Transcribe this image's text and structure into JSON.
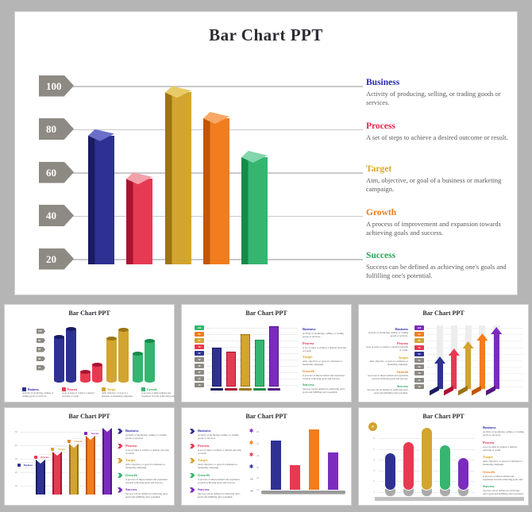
{
  "page": {
    "background": "#b5b5b5"
  },
  "ui": {
    "slide_bg": "#ffffff",
    "slide_border": "#d0d0d0",
    "grid_line": "#c9c9c9",
    "title_text": "#2c2c33",
    "desc_text": "#5c5c5c",
    "tick_text": "#999999",
    "track": "#ededed",
    "platform": "#9b9b9b"
  },
  "colors": {
    "blue": {
      "main": "#2e3192",
      "dark": "#1a1c61",
      "light": "#6a70c9",
      "title": "#2a2ab0"
    },
    "red": {
      "main": "#e63a52",
      "dark": "#a91330",
      "light": "#f4a0ab",
      "title": "#e5274d"
    },
    "gold": {
      "main": "#d2a430",
      "dark": "#9c7413",
      "light": "#e8ca66",
      "title": "#dfa61f"
    },
    "orange": {
      "main": "#f17d1e",
      "dark": "#bf5707",
      "light": "#f8a866",
      "title": "#ee7c1e"
    },
    "green": {
      "main": "#35b570",
      "dark": "#148c49",
      "light": "#84d6ab",
      "title": "#2ba458"
    },
    "purple": {
      "main": "#7b2cbe",
      "dark": "#541687",
      "light": "#a96ddd",
      "title": "#7b2cbe"
    },
    "gray": {
      "main": "#8d8a84",
      "dark": "#6f6c66",
      "light": "#b5b2ac",
      "title": "#8d8a84"
    }
  },
  "legend_defs": {
    "business": {
      "label": "Business",
      "color": "blue",
      "desc": "Activity of producing, selling, or trading goods or services."
    },
    "process": {
      "label": "Process",
      "color": "red",
      "desc": "A set of steps to achieve a desired outcome or result."
    },
    "target": {
      "label": "Target",
      "color": "gold",
      "desc": "Aim, objective, or goal of a business or marketing campaign."
    },
    "growth": {
      "label": "Growth",
      "color": "orange",
      "desc": "A process of improvement and expansion towards achieving goals and success."
    },
    "success": {
      "label": "Success",
      "color": "green",
      "desc": "Success can be defined as achieving one's goals and fulfilling one's potential."
    }
  },
  "chart_data": [
    {
      "id": "main-slide",
      "type": "bar",
      "style": "prism-3d",
      "title": "Bar Chart PPT",
      "categories": [
        "Business",
        "Process",
        "Target",
        "Growth",
        "Success"
      ],
      "values": [
        80,
        60,
        100,
        88,
        70
      ],
      "colors": [
        "blue",
        "red",
        "gold",
        "orange",
        "green"
      ],
      "axis_ticks": [
        "100",
        "80",
        "60",
        "40",
        "20"
      ],
      "ylim": [
        20,
        100
      ],
      "grid": true,
      "legend_position": "right",
      "legend": [
        {
          "key": "business"
        },
        {
          "key": "process"
        },
        {
          "key": "target"
        },
        {
          "key": "growth"
        },
        {
          "key": "success"
        }
      ]
    },
    {
      "id": "thumb-1",
      "type": "bar",
      "style": "cylinder-pairs",
      "title": "Bar Chart PPT",
      "series": [
        {
          "name": "Business",
          "color": "blue",
          "values": [
            62,
            73
          ]
        },
        {
          "name": "Process",
          "color": "red",
          "values": [
            16,
            25
          ]
        },
        {
          "name": "Target",
          "color": "gold",
          "values": [
            60,
            72
          ]
        },
        {
          "name": "Growth",
          "color": "green",
          "values": [
            40,
            57
          ]
        }
      ],
      "axis_ticks": [
        "100",
        "80",
        "60",
        "40",
        "20"
      ],
      "legend_position": "bottom",
      "legend": [
        {
          "key": "business"
        },
        {
          "key": "process"
        },
        {
          "key": "target"
        },
        {
          "key": "growth",
          "color": "green"
        }
      ]
    },
    {
      "id": "thumb-2",
      "type": "bar",
      "style": "flat-with-base",
      "title": "Bar Chart PPT",
      "categories": [
        "Business",
        "Process",
        "Target",
        "Growth",
        "Success"
      ],
      "values": [
        52,
        46,
        70,
        62,
        80
      ],
      "colors": [
        "blue",
        "red",
        "gold",
        "green",
        "purple"
      ],
      "tag_colors": [
        "green",
        "orange",
        "gold",
        "red",
        "blue",
        "gray",
        "gray",
        "gray",
        "gray",
        "gray"
      ],
      "axis_ticks": [
        "100",
        "90",
        "80",
        "70",
        "60",
        "50",
        "40",
        "30",
        "20",
        "10"
      ],
      "legend_position": "right",
      "legend": [
        {
          "key": "business"
        },
        {
          "key": "process"
        },
        {
          "key": "target"
        },
        {
          "key": "growth"
        },
        {
          "key": "success"
        }
      ]
    },
    {
      "id": "thumb-3",
      "type": "bar",
      "style": "bent-arrow",
      "title": "Bar Chart PPT",
      "categories": [
        "Business",
        "Process",
        "Target",
        "Growth",
        "Success"
      ],
      "values": [
        43,
        53,
        62,
        72,
        80
      ],
      "colors": [
        "blue",
        "red",
        "gold",
        "orange",
        "purple"
      ],
      "tag_colors": [
        "purple",
        "orange",
        "gold",
        "red",
        "blue",
        "gray",
        "gray",
        "gray",
        "gray",
        "gray"
      ],
      "axis_ticks": [
        "100",
        "90",
        "80",
        "70",
        "60",
        "50",
        "40",
        "30",
        "20",
        "10"
      ],
      "legend_position": "left",
      "legend": [
        {
          "key": "business"
        },
        {
          "key": "process"
        },
        {
          "key": "target"
        },
        {
          "key": "growth"
        },
        {
          "key": "success"
        }
      ]
    },
    {
      "id": "thumb-4",
      "type": "bar",
      "style": "ribbon",
      "title": "Bar Chart PPT",
      "bar_labels": [
        "Business",
        "Process",
        "Target",
        "Growth",
        "Success"
      ],
      "values": [
        44,
        54,
        64,
        74,
        84
      ],
      "colors": [
        "blue",
        "red",
        "gold",
        "orange",
        "purple"
      ],
      "axis_ticks": [
        "50",
        "40",
        "30",
        "20",
        "10"
      ],
      "legend_position": "right",
      "legend_icon": "chevron",
      "legend": [
        {
          "key": "business"
        },
        {
          "key": "process"
        },
        {
          "key": "target"
        },
        {
          "key": "growth",
          "color": "green"
        },
        {
          "key": "success",
          "color": "purple"
        }
      ]
    },
    {
      "id": "thumb-5",
      "type": "bar",
      "style": "flat-platform",
      "title": "Bar Chart PPT",
      "values": [
        62,
        31,
        76,
        47
      ],
      "colors": [
        "blue",
        "red",
        "orange",
        "purple"
      ],
      "axis_icons": [
        "purple",
        "orange",
        "red",
        "blue"
      ],
      "axis_ticks": [
        "60",
        "50",
        "40",
        "30",
        "20",
        "10"
      ],
      "legend_position": "left",
      "legend_icon": "chevron",
      "legend": [
        {
          "key": "business"
        },
        {
          "key": "process"
        },
        {
          "key": "target"
        },
        {
          "key": "growth",
          "color": "green"
        },
        {
          "key": "success",
          "color": "purple"
        }
      ]
    },
    {
      "id": "thumb-6",
      "type": "bar",
      "style": "rounded-capsule",
      "title": "Bar Chart PPT",
      "badge": "8",
      "values": [
        48,
        62,
        80,
        58,
        42
      ],
      "colors": [
        "blue",
        "red",
        "gold",
        "green",
        "purple"
      ],
      "axis_ticks": [
        "6",
        "5",
        "4",
        "3",
        "2",
        "1"
      ],
      "legend_position": "right",
      "legend": [
        {
          "key": "business"
        },
        {
          "key": "process"
        },
        {
          "key": "target"
        },
        {
          "key": "growth"
        },
        {
          "key": "success"
        }
      ]
    }
  ]
}
